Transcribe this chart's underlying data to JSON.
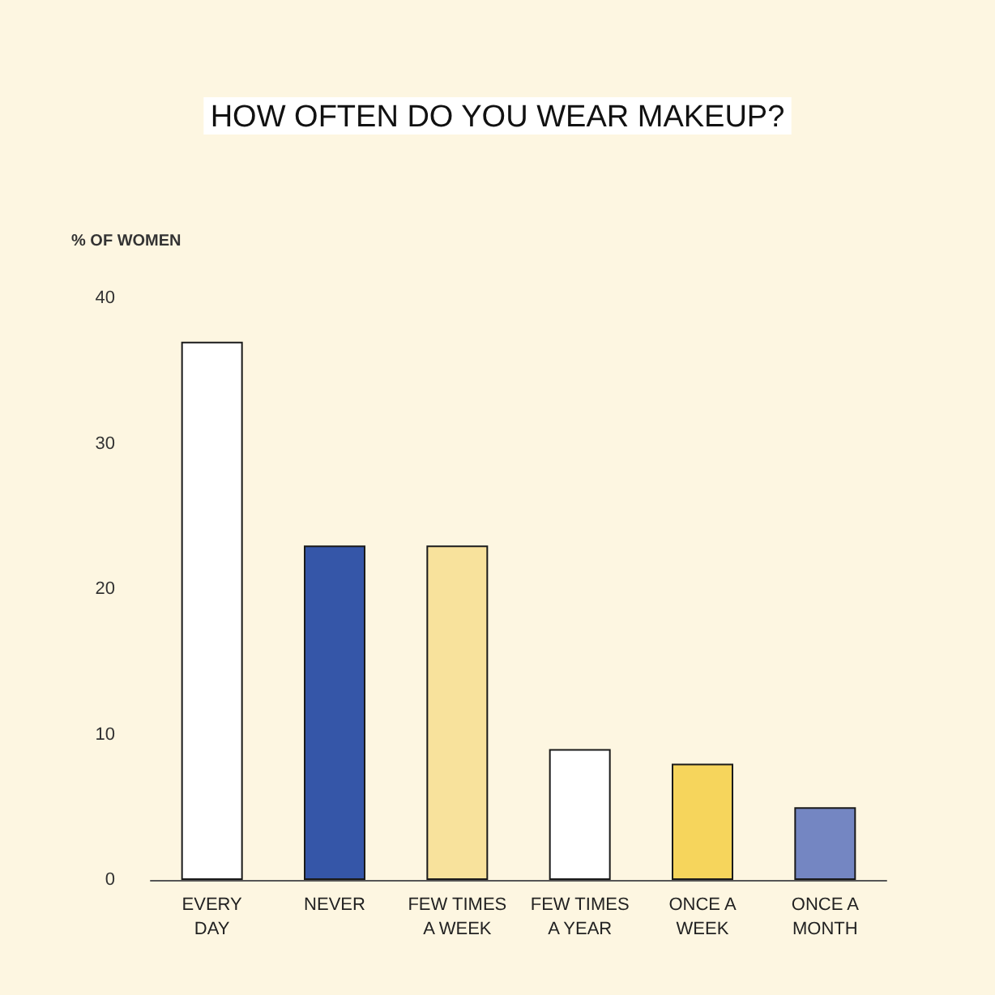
{
  "chart_data": {
    "type": "bar",
    "title": "HOW OFTEN DO YOU WEAR MAKEUP?",
    "ylabel": "% OF WOMEN",
    "categories": [
      "EVERY\nDAY",
      "NEVER",
      "FEW TIMES\nA WEEK",
      "FEW TIMES\nA YEAR",
      "ONCE A\nWEEK",
      "ONCE A\nMONTH"
    ],
    "values": [
      37,
      23,
      23,
      9,
      8,
      5
    ],
    "colors": [
      "#ffffff",
      "#3556a8",
      "#f8e29c",
      "#ffffff",
      "#f6d55c",
      "#7486c2"
    ],
    "ylim": [
      0,
      40
    ],
    "yticks": [
      0,
      10,
      20,
      30,
      40
    ],
    "grid": false
  }
}
